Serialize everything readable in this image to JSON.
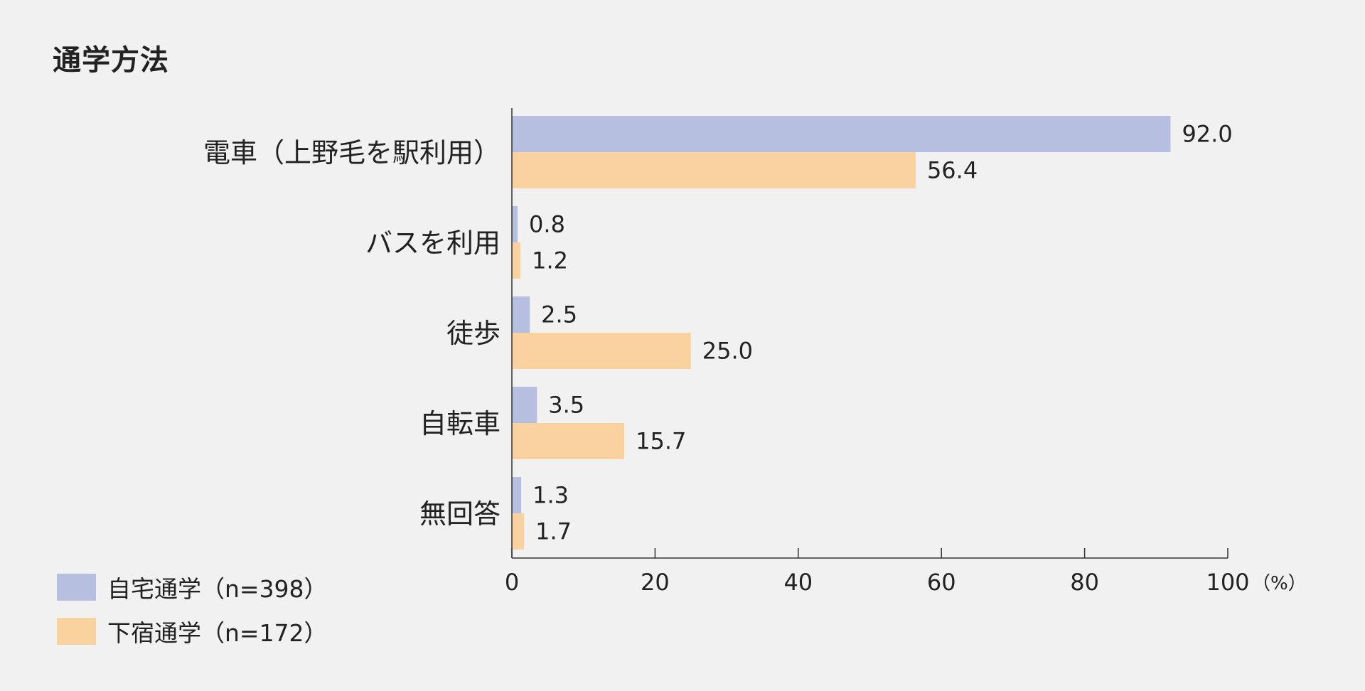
{
  "title": "通学方法",
  "chart_data": {
    "type": "bar",
    "orientation": "horizontal",
    "categories": [
      "電車（上野毛を駅利用）",
      "バスを利用",
      "徒歩",
      "自転車",
      "無回答"
    ],
    "series": [
      {
        "name": "自宅通学（n=398）",
        "values": [
          92.0,
          0.8,
          2.5,
          3.5,
          1.3
        ],
        "color": "#b6bfe0"
      },
      {
        "name": "下宿通学（n=172）",
        "values": [
          56.4,
          1.2,
          25.0,
          15.7,
          1.7
        ],
        "color": "#f9d2a0"
      }
    ],
    "value_labels": [
      [
        "92.0",
        "0.8",
        "2.5",
        "3.5",
        "1.3"
      ],
      [
        "56.4",
        "1.2",
        "25.0",
        "15.7",
        "1.7"
      ]
    ],
    "xlim": [
      0,
      100
    ],
    "xticks": [
      0,
      20,
      40,
      60,
      80,
      100
    ],
    "xtick_labels": [
      "0",
      "20",
      "40",
      "60",
      "80",
      "100"
    ],
    "x_unit": "（%）",
    "grid": false,
    "legend_position": "bottom-left"
  },
  "colors": {
    "background": "#f1f1f1",
    "axis": "#333333",
    "text": "#222222"
  }
}
